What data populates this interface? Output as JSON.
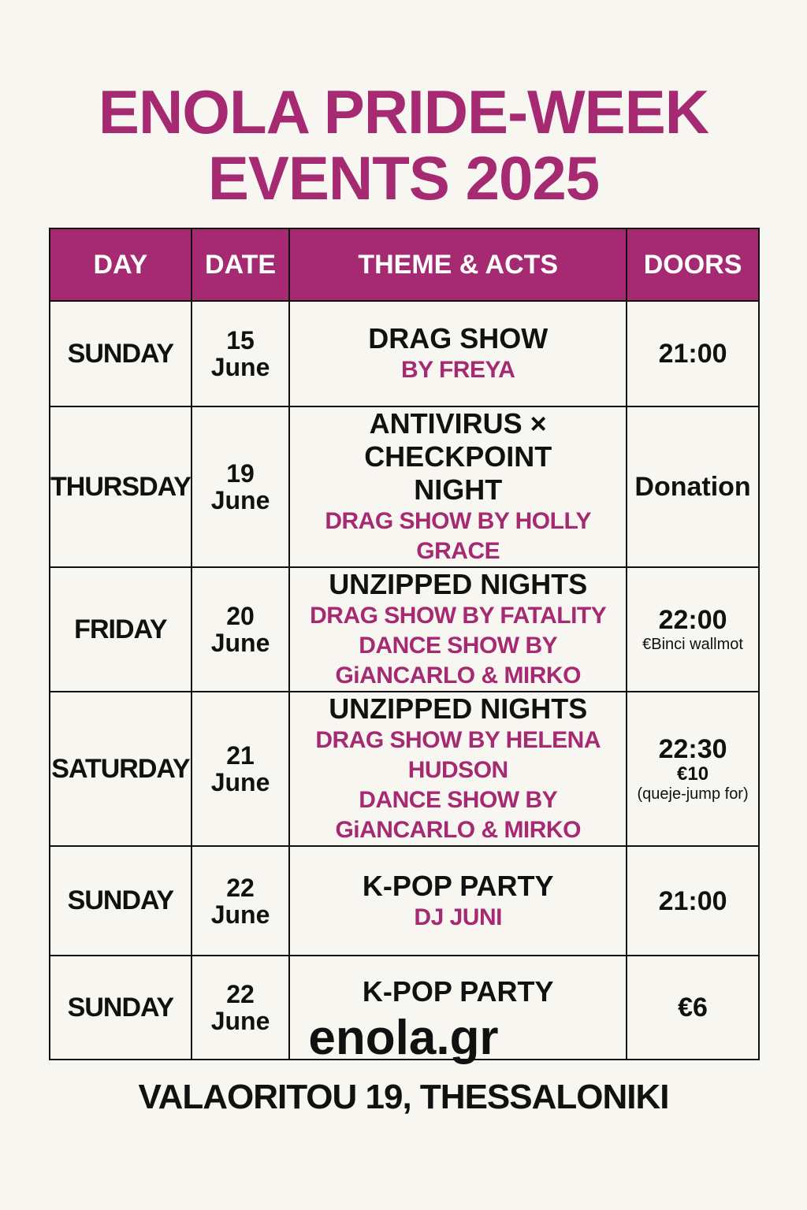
{
  "title": {
    "line1": "ENOLA PRIDE-WEEK",
    "line2": "EVENTS 2025"
  },
  "colors": {
    "accent": "#a52a72",
    "background": "#f8f6f1"
  },
  "table": {
    "headers": [
      "DAY",
      "DATE",
      "THEME & ACTS",
      "DOORS"
    ],
    "rows": [
      {
        "day": "SUNDAY",
        "date_day": "15",
        "date_month": "June",
        "theme": "DRAG SHOW",
        "acts": [
          "BY FREYA"
        ],
        "doors": "21:00",
        "doors_note": "",
        "doors_note2": ""
      },
      {
        "day": "THURSDAY",
        "date_day": "19",
        "date_month": "June",
        "theme": "ANTIVIRUS × CHECKPOINT NIGHT",
        "acts": [
          "DRAG SHOW BY HOLLY GRACE"
        ],
        "doors": "Donation",
        "doors_note": "",
        "doors_note2": ""
      },
      {
        "day": "FRIDAY",
        "date_day": "20",
        "date_month": "June",
        "theme": "UNZIPPED NIGHTS",
        "acts": [
          "DRAG SHOW BY FATALITY",
          "DANCE SHOW BY GiANCARLO & MIRKO"
        ],
        "doors": "22:00",
        "doors_note": "€Binci wallmot",
        "doors_note2": ""
      },
      {
        "day": "SATURDAY",
        "date_day": "21",
        "date_month": "June",
        "theme": "UNZIPPED NIGHTS",
        "acts": [
          "DRAG SHOW BY HELENA HUDSON",
          "DANCE SHOW BY GiANCARLO & MIRKO"
        ],
        "doors": "22:30",
        "doors_note": "€10",
        "doors_note2": "(queje-jump for)"
      },
      {
        "day": "SUNDAY",
        "date_day": "22",
        "date_month": "June",
        "theme": "K-POP PARTY",
        "acts": [
          "DJ JUNI"
        ],
        "doors": "21:00",
        "doors_note": "",
        "doors_note2": ""
      },
      {
        "day": "SUNDAY",
        "date_day": "22",
        "date_month": "June",
        "theme": "K-POP PARTY",
        "acts": [],
        "doors": "€6",
        "doors_note": "",
        "doors_note2": ""
      }
    ]
  },
  "footer": {
    "website": "enola.gr",
    "address": "VALAORITOU 19, THESSALONIKI"
  }
}
